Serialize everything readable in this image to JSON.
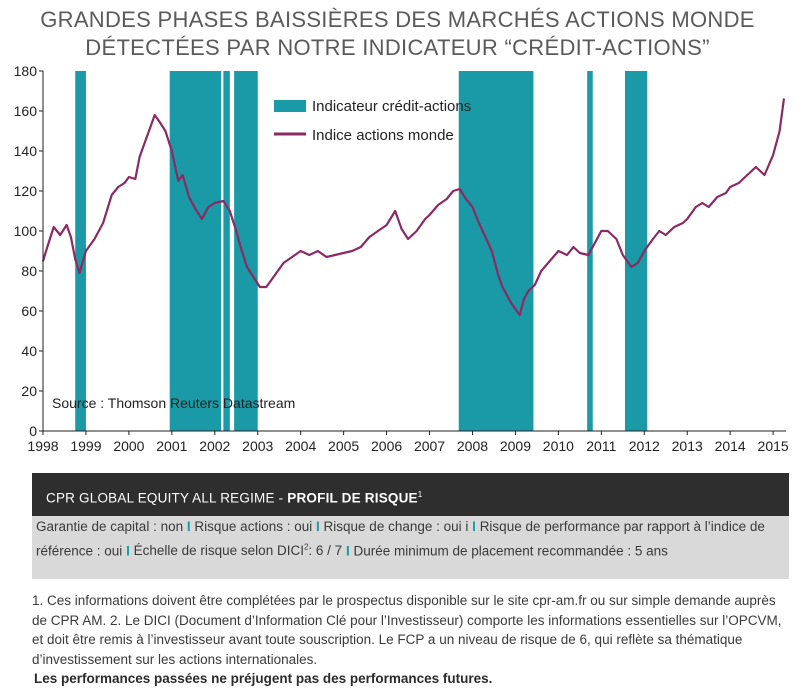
{
  "title": {
    "line1": "GRANDES PHASES BAISSIÈRES DES MARCHÉS ACTIONS MONDE",
    "line2": "DÉTECTÉES PAR NOTRE INDICATEUR “CRÉDIT-ACTIONS”"
  },
  "chart_data": {
    "type": "line",
    "title": "GRANDES PHASES BAISSIÈRES DES MARCHÉS ACTIONS MONDE DÉTECTÉES PAR NOTRE INDICATEUR “CRÉDIT-ACTIONS”",
    "xlabel": "",
    "ylabel": "",
    "xlim": [
      1998,
      2015.3
    ],
    "ylim": [
      0,
      180
    ],
    "x_ticks": [
      "1998",
      "1999",
      "2000",
      "2001",
      "2002",
      "2003",
      "2004",
      "2005",
      "2006",
      "2007",
      "2008",
      "2009",
      "2010",
      "2011",
      "2012",
      "2013",
      "2014",
      "2015"
    ],
    "y_ticks": [
      0,
      20,
      40,
      60,
      80,
      100,
      120,
      140,
      160,
      180
    ],
    "grid": false,
    "legend_position": "top-center",
    "annotation": "Source : Thomson Reuters Datastream",
    "colors": {
      "line": "#8b2a63",
      "band": "#1a9aa6",
      "axis": "#222222"
    },
    "bands": {
      "name": "Indicateur crédit-actions",
      "periods": [
        [
          1998.75,
          1999.0
        ],
        [
          2000.95,
          2002.15
        ],
        [
          2002.2,
          2002.35
        ],
        [
          2002.45,
          2003.0
        ],
        [
          2007.68,
          2009.42
        ],
        [
          2010.67,
          2010.8
        ],
        [
          2011.55,
          2012.07
        ]
      ]
    },
    "series": [
      {
        "name": "Indice actions monde",
        "x": [
          1998.0,
          1998.1,
          1998.25,
          1998.4,
          1998.55,
          1998.65,
          1998.75,
          1998.85,
          1999.0,
          1999.2,
          1999.4,
          1999.6,
          1999.75,
          1999.9,
          2000.0,
          2000.15,
          2000.25,
          2000.35,
          2000.5,
          2000.6,
          2000.7,
          2000.85,
          2001.0,
          2001.15,
          2001.25,
          2001.4,
          2001.55,
          2001.7,
          2001.85,
          2002.0,
          2002.2,
          2002.35,
          2002.5,
          2002.6,
          2002.75,
          2002.9,
          2003.05,
          2003.2,
          2003.4,
          2003.6,
          2003.8,
          2004.0,
          2004.2,
          2004.4,
          2004.6,
          2004.8,
          2005.0,
          2005.2,
          2005.4,
          2005.6,
          2005.8,
          2006.0,
          2006.2,
          2006.35,
          2006.5,
          2006.7,
          2006.9,
          2007.0,
          2007.2,
          2007.4,
          2007.55,
          2007.7,
          2007.85,
          2008.0,
          2008.15,
          2008.3,
          2008.45,
          2008.6,
          2008.7,
          2008.8,
          2008.9,
          2009.0,
          2009.1,
          2009.2,
          2009.3,
          2009.45,
          2009.6,
          2009.8,
          2010.0,
          2010.2,
          2010.35,
          2010.5,
          2010.7,
          2010.9,
          2011.0,
          2011.15,
          2011.35,
          2011.5,
          2011.6,
          2011.7,
          2011.85,
          2012.0,
          2012.2,
          2012.35,
          2012.5,
          2012.7,
          2012.9,
          2013.0,
          2013.2,
          2013.35,
          2013.5,
          2013.7,
          2013.9,
          2014.0,
          2014.2,
          2014.4,
          2014.6,
          2014.8,
          2015.0,
          2015.15,
          2015.25
        ],
        "values": [
          85,
          92,
          102,
          98,
          103,
          97,
          86,
          79,
          90,
          96,
          104,
          118,
          122,
          124,
          127,
          126,
          137,
          143,
          152,
          158,
          155,
          150,
          140,
          125,
          128,
          117,
          111,
          106,
          112,
          114,
          115,
          110,
          100,
          92,
          82,
          77,
          72,
          72,
          78,
          84,
          87,
          90,
          88,
          90,
          87,
          88,
          89,
          90,
          92,
          97,
          100,
          103,
          110,
          101,
          96,
          100,
          106,
          108,
          113,
          116,
          120,
          121,
          116,
          112,
          104,
          97,
          90,
          78,
          72,
          68,
          64,
          61,
          58,
          66,
          70,
          73,
          80,
          85,
          90,
          88,
          92,
          89,
          88,
          96,
          100,
          100,
          96,
          88,
          85,
          82,
          84,
          90,
          96,
          100,
          98,
          102,
          104,
          106,
          112,
          114,
          112,
          117,
          119,
          122,
          124,
          128,
          132,
          128,
          138,
          150,
          166
        ]
      }
    ]
  },
  "band": {
    "prefix": "CPR GLOBAL EQUITY ALL REGIME - ",
    "bold": "PROFIL DE RISQUE",
    "sup": "1"
  },
  "risk": {
    "item1": "Garantie de capital : non",
    "item2": "Risque actions : oui",
    "item3": "Risque de change : oui i",
    "item4": "Risque de performance par rapport à l’indice de référence : oui",
    "item5_a": "Échelle de risque selon DICI",
    "item5_sup": "2",
    "item5_b": ": 6 / 7",
    "item6": "Durée minimum de placement recommandée : 5 ans",
    "separator": "I"
  },
  "footnote": {
    "text": "1. Ces informations doivent être complétées par le prospectus disponible sur le site cpr-am.fr ou sur simple demande auprès de CPR AM.  2. Le DICI (Document d’Information Clé pour l’Investisseur) comporte les informations essentielles sur l’OPCVM, et doit être remis à l’investisseur avant toute souscription. Le FCP a un niveau de risque de 6, qui reflète sa thématique d’investissement sur les actions internationales.",
    "disclaimer": "Les performances passées ne préjugent pas des performances futures."
  }
}
